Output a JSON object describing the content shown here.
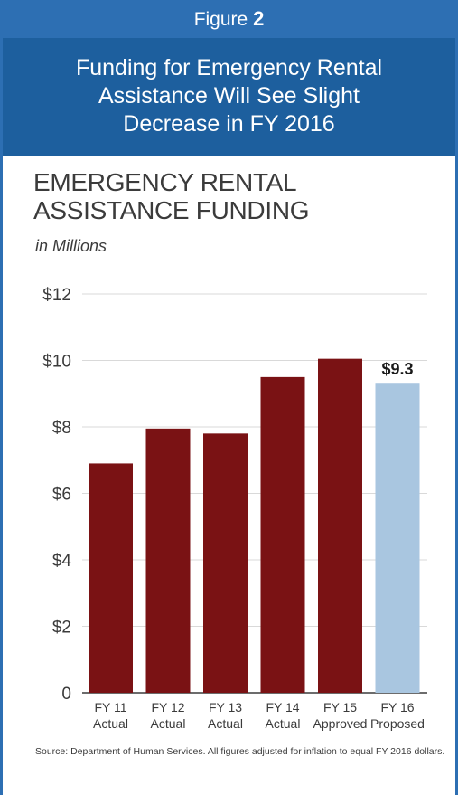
{
  "figure": {
    "label": "Figure",
    "number": "2"
  },
  "headline": [
    "Funding for Emergency Rental",
    "Assistance Will See Slight",
    "Decrease in FY 2016"
  ],
  "colors": {
    "header_light": "#2d6fb3",
    "header_dark": "#1d5f9e",
    "bar_actual": "#7a1214",
    "bar_proposed": "#a9c6e0"
  },
  "chart_data": {
    "type": "bar",
    "title": [
      "EMERGENCY RENTAL",
      "ASSISTANCE FUNDING"
    ],
    "subtitle": "in Millions",
    "categories": [
      [
        "FY 11",
        "Actual"
      ],
      [
        "FY 12",
        "Actual"
      ],
      [
        "FY 13",
        "Actual"
      ],
      [
        "FY 14",
        "Actual"
      ],
      [
        "FY 15",
        "Approved"
      ],
      [
        "FY 16",
        "Proposed"
      ]
    ],
    "values": [
      6.9,
      7.95,
      7.8,
      9.5,
      10.05,
      9.3
    ],
    "highlight_index": 5,
    "data_labels": [
      "",
      "",
      "",
      "",
      "",
      "$9.3"
    ],
    "y_ticks": [
      "0",
      "$2",
      "$4",
      "$6",
      "$8",
      "$10",
      "$12"
    ],
    "ylim": [
      0,
      12
    ],
    "grid": true
  },
  "source_note": "Source: Department of Human Services.  All figures adjusted for inflation to equal FY 2016 dollars."
}
